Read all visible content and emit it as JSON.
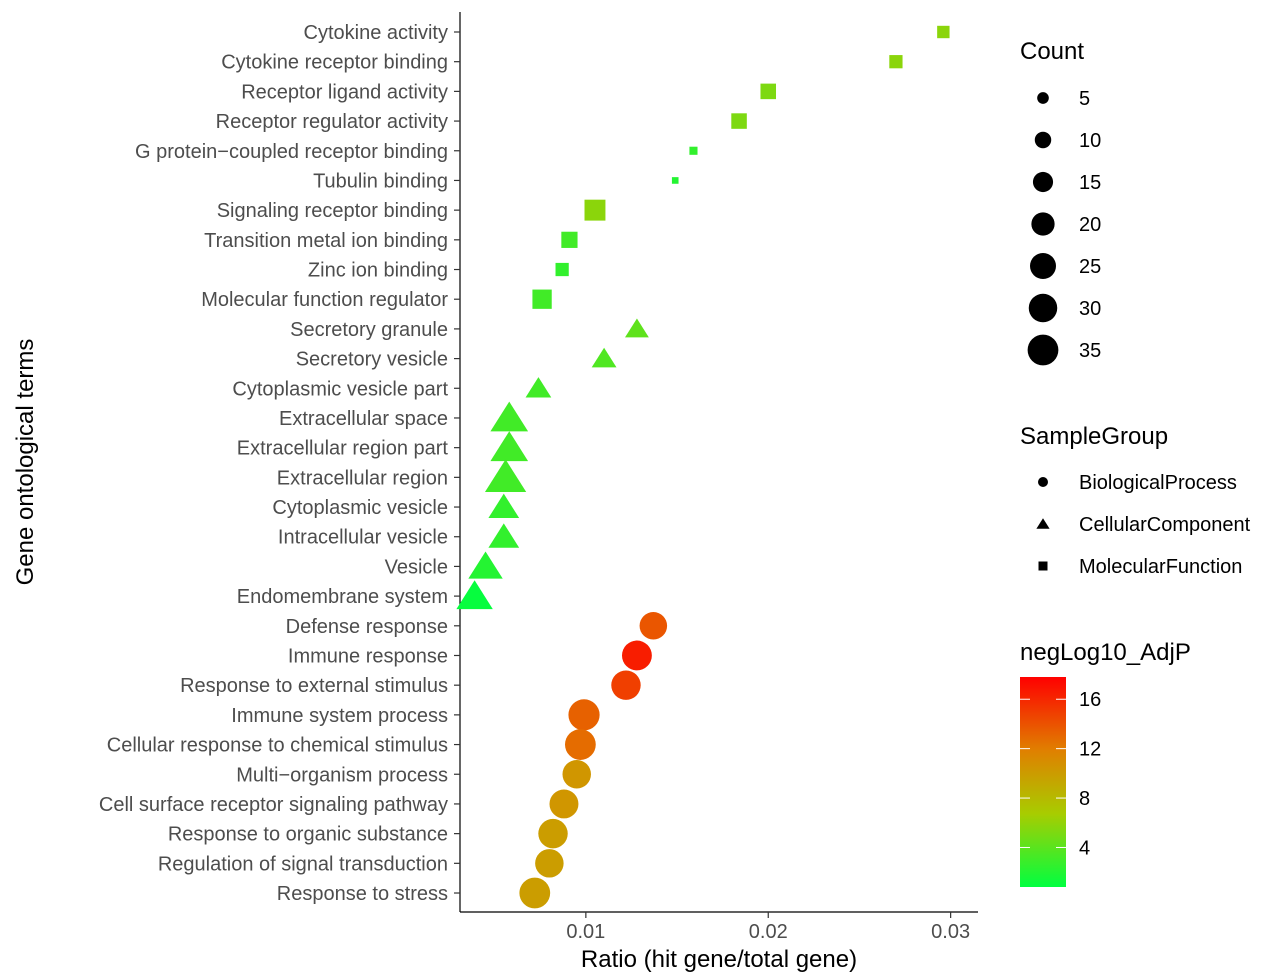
{
  "chart_data": {
    "type": "scatter",
    "xlabel": "Ratio (hit gene/total gene)",
    "ylabel": "Gene ontological terms",
    "xlim": [
      0.0031,
      0.0315
    ],
    "x_ticks": [
      0.01,
      0.02,
      0.03
    ],
    "x_tick_labels": [
      "0.01",
      "0.02",
      "0.03"
    ],
    "grid": false,
    "legend_position": "right",
    "categories": [
      "Cytokine activity",
      "Cytokine receptor binding",
      "Receptor ligand activity",
      "Receptor regulator activity",
      "G protein−coupled receptor binding",
      "Tubulin binding",
      "Signaling receptor binding",
      "Transition metal ion binding",
      "Zinc ion binding",
      "Molecular function regulator",
      "Secretory granule",
      "Secretory vesicle",
      "Cytoplasmic vesicle part",
      "Extracellular space",
      "Extracellular region part",
      "Extracellular region",
      "Cytoplasmic vesicle",
      "Intracellular vesicle",
      "Vesicle",
      "Endomembrane system",
      "Defense response",
      "Immune response",
      "Response to external stimulus",
      "Immune system process",
      "Cellular response to chemical stimulus",
      "Multi−organism process",
      "Cell surface receptor signaling pathway",
      "Response to organic substance",
      "Regulation of signal transduction",
      "Response to stress"
    ],
    "points": [
      {
        "term": "Cytokine activity",
        "x": 0.0296,
        "group": "MolecularFunction",
        "count": 7,
        "negLog10_AdjP": 5.5
      },
      {
        "term": "Cytokine receptor binding",
        "x": 0.027,
        "group": "MolecularFunction",
        "count": 8,
        "negLog10_AdjP": 5.5
      },
      {
        "term": "Receptor ligand activity",
        "x": 0.02,
        "group": "MolecularFunction",
        "count": 11,
        "negLog10_AdjP": 5.0
      },
      {
        "term": "Receptor regulator activity",
        "x": 0.0184,
        "group": "MolecularFunction",
        "count": 11,
        "negLog10_AdjP": 5.0
      },
      {
        "term": "G protein−coupled receptor binding",
        "x": 0.0159,
        "group": "MolecularFunction",
        "count": 3,
        "negLog10_AdjP": 2.5
      },
      {
        "term": "Tubulin binding",
        "x": 0.0149,
        "group": "MolecularFunction",
        "count": 2,
        "negLog10_AdjP": 2.0
      },
      {
        "term": "Signaling receptor binding",
        "x": 0.0105,
        "group": "MolecularFunction",
        "count": 20,
        "negLog10_AdjP": 5.5
      },
      {
        "term": "Transition metal ion binding",
        "x": 0.0091,
        "group": "MolecularFunction",
        "count": 12,
        "negLog10_AdjP": 3.0
      },
      {
        "term": "Zinc ion binding",
        "x": 0.0087,
        "group": "MolecularFunction",
        "count": 8,
        "negLog10_AdjP": 2.5
      },
      {
        "term": "Molecular function regulator",
        "x": 0.0076,
        "group": "MolecularFunction",
        "count": 17,
        "negLog10_AdjP": 3.0
      },
      {
        "term": "Secretory granule",
        "x": 0.0128,
        "group": "CellularComponent",
        "count": 12,
        "negLog10_AdjP": 4.0
      },
      {
        "term": "Secretory vesicle",
        "x": 0.011,
        "group": "CellularComponent",
        "count": 13,
        "negLog10_AdjP": 3.5
      },
      {
        "term": "Cytoplasmic vesicle part",
        "x": 0.0074,
        "group": "CellularComponent",
        "count": 14,
        "negLog10_AdjP": 3.0
      },
      {
        "term": "Extracellular space",
        "x": 0.0058,
        "group": "CellularComponent",
        "count": 30,
        "negLog10_AdjP": 3.0
      },
      {
        "term": "Extracellular region part",
        "x": 0.0058,
        "group": "CellularComponent",
        "count": 30,
        "negLog10_AdjP": 3.0
      },
      {
        "term": "Extracellular region",
        "x": 0.0056,
        "group": "CellularComponent",
        "count": 36,
        "negLog10_AdjP": 3.0
      },
      {
        "term": "Cytoplasmic vesicle",
        "x": 0.0055,
        "group": "CellularComponent",
        "count": 20,
        "negLog10_AdjP": 2.5
      },
      {
        "term": "Intracellular vesicle",
        "x": 0.0055,
        "group": "CellularComponent",
        "count": 20,
        "negLog10_AdjP": 2.5
      },
      {
        "term": "Vesicle",
        "x": 0.0045,
        "group": "CellularComponent",
        "count": 25,
        "negLog10_AdjP": 2.0
      },
      {
        "term": "Endomembrane system",
        "x": 0.0039,
        "group": "CellularComponent",
        "count": 28,
        "negLog10_AdjP": 1.0
      },
      {
        "term": "Defense response",
        "x": 0.0137,
        "group": "BiologicalProcess",
        "count": 28,
        "negLog10_AdjP": 14.0
      },
      {
        "term": "Immune response",
        "x": 0.0128,
        "group": "BiologicalProcess",
        "count": 33,
        "negLog10_AdjP": 16.5
      },
      {
        "term": "Response to external stimulus",
        "x": 0.0122,
        "group": "BiologicalProcess",
        "count": 32,
        "negLog10_AdjP": 15.0
      },
      {
        "term": "Immune system process",
        "x": 0.0099,
        "group": "BiologicalProcess",
        "count": 36,
        "negLog10_AdjP": 13.5
      },
      {
        "term": "Cellular response to chemical stimulus",
        "x": 0.0097,
        "group": "BiologicalProcess",
        "count": 35,
        "negLog10_AdjP": 13.0
      },
      {
        "term": "Multi−organism process",
        "x": 0.0095,
        "group": "BiologicalProcess",
        "count": 30,
        "negLog10_AdjP": 10.5
      },
      {
        "term": "Cell surface receptor signaling pathway",
        "x": 0.0088,
        "group": "BiologicalProcess",
        "count": 31,
        "negLog10_AdjP": 10.5
      },
      {
        "term": "Response to organic substance",
        "x": 0.0082,
        "group": "BiologicalProcess",
        "count": 32,
        "negLog10_AdjP": 10.0
      },
      {
        "term": "Regulation of signal transduction",
        "x": 0.008,
        "group": "BiologicalProcess",
        "count": 30,
        "negLog10_AdjP": 10.0
      },
      {
        "term": "Response to stress",
        "x": 0.0072,
        "group": "BiologicalProcess",
        "count": 35,
        "negLog10_AdjP": 10.0
      }
    ],
    "legend": {
      "size": {
        "title": "Count",
        "values": [
          5,
          10,
          15,
          20,
          25,
          30,
          35
        ],
        "labels": [
          "5",
          "10",
          "15",
          "20",
          "25",
          "30",
          "35"
        ]
      },
      "shape": {
        "title": "SampleGroup",
        "entries": [
          {
            "label": "BiologicalProcess",
            "shape": "circle"
          },
          {
            "label": "CellularComponent",
            "shape": "triangle"
          },
          {
            "label": "MolecularFunction",
            "shape": "square"
          }
        ]
      },
      "color": {
        "title": "negLog10_AdjP",
        "tick_values": [
          16,
          12,
          8,
          4
        ],
        "tick_labels": [
          "16",
          "12",
          "8",
          "4"
        ],
        "range": [
          0.8,
          17.8
        ],
        "colors": [
          "#00ff40",
          "#a8cc00",
          "#e08000",
          "#ff0000"
        ]
      }
    }
  }
}
